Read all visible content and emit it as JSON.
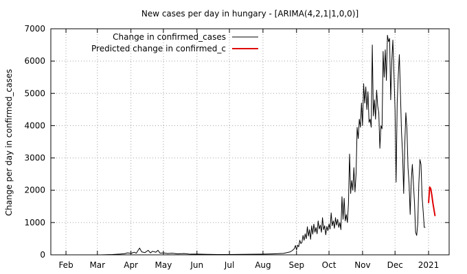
{
  "chart_data": {
    "type": "line",
    "title": "New cases per day in hungary -  [ARIMA(4,2,1|1,0,0)]",
    "xlabel": "",
    "ylabel": "Change per day in confirmed_cases",
    "ylim": [
      0,
      7000
    ],
    "yticks": [
      0,
      1000,
      2000,
      3000,
      4000,
      5000,
      6000,
      7000
    ],
    "xlim": [
      "2020-01-18",
      "2021-01-20"
    ],
    "xticks": [
      {
        "label": "Feb",
        "date": "2020-02-01"
      },
      {
        "label": "Mar",
        "date": "2020-03-01"
      },
      {
        "label": "Apr",
        "date": "2020-04-01"
      },
      {
        "label": "May",
        "date": "2020-05-01"
      },
      {
        "label": "Jun",
        "date": "2020-06-01"
      },
      {
        "label": "Jul",
        "date": "2020-07-01"
      },
      {
        "label": "Aug",
        "date": "2020-08-01"
      },
      {
        "label": "Sep",
        "date": "2020-09-01"
      },
      {
        "label": "Oct",
        "date": "2020-10-01"
      },
      {
        "label": "Nov",
        "date": "2020-11-01"
      },
      {
        "label": "Dec",
        "date": "2020-12-01"
      },
      {
        "label": "2021",
        "date": "2021-01-01"
      }
    ],
    "grid": true,
    "legend": "top-left",
    "series": [
      {
        "name": "Change in confirmed_cases",
        "color": "#000000",
        "points": [
          [
            "2020-03-04",
            0
          ],
          [
            "2020-03-15",
            10
          ],
          [
            "2020-03-22",
            25
          ],
          [
            "2020-03-26",
            35
          ],
          [
            "2020-03-29",
            60
          ],
          [
            "2020-04-01",
            45
          ],
          [
            "2020-04-04",
            80
          ],
          [
            "2020-04-06",
            50
          ],
          [
            "2020-04-09",
            210
          ],
          [
            "2020-04-11",
            90
          ],
          [
            "2020-04-14",
            70
          ],
          [
            "2020-04-17",
            140
          ],
          [
            "2020-04-19",
            60
          ],
          [
            "2020-04-21",
            110
          ],
          [
            "2020-04-24",
            80
          ],
          [
            "2020-04-26",
            140
          ],
          [
            "2020-04-28",
            50
          ],
          [
            "2020-05-01",
            60
          ],
          [
            "2020-05-05",
            40
          ],
          [
            "2020-05-09",
            50
          ],
          [
            "2020-05-14",
            30
          ],
          [
            "2020-05-20",
            40
          ],
          [
            "2020-05-26",
            20
          ],
          [
            "2020-06-01",
            25
          ],
          [
            "2020-06-10",
            15
          ],
          [
            "2020-06-20",
            10
          ],
          [
            "2020-07-01",
            10
          ],
          [
            "2020-07-15",
            15
          ],
          [
            "2020-07-30",
            20
          ],
          [
            "2020-08-10",
            30
          ],
          [
            "2020-08-20",
            45
          ],
          [
            "2020-08-26",
            90
          ],
          [
            "2020-08-28",
            130
          ],
          [
            "2020-08-30",
            190
          ],
          [
            "2020-08-31",
            290
          ],
          [
            "2020-09-01",
            150
          ],
          [
            "2020-09-02",
            300
          ],
          [
            "2020-09-03",
            250
          ],
          [
            "2020-09-04",
            450
          ],
          [
            "2020-09-05",
            350
          ],
          [
            "2020-09-06",
            380
          ],
          [
            "2020-09-07",
            600
          ],
          [
            "2020-09-08",
            450
          ],
          [
            "2020-09-09",
            650
          ],
          [
            "2020-09-10",
            500
          ],
          [
            "2020-09-11",
            870
          ],
          [
            "2020-09-12",
            580
          ],
          [
            "2020-09-13",
            780
          ],
          [
            "2020-09-14",
            480
          ],
          [
            "2020-09-15",
            900
          ],
          [
            "2020-09-16",
            640
          ],
          [
            "2020-09-17",
            950
          ],
          [
            "2020-09-18",
            700
          ],
          [
            "2020-09-19",
            850
          ],
          [
            "2020-09-20",
            650
          ],
          [
            "2020-09-21",
            1050
          ],
          [
            "2020-09-22",
            800
          ],
          [
            "2020-09-23",
            920
          ],
          [
            "2020-09-24",
            700
          ],
          [
            "2020-09-25",
            1150
          ],
          [
            "2020-09-26",
            780
          ],
          [
            "2020-09-27",
            900
          ],
          [
            "2020-09-28",
            620
          ],
          [
            "2020-09-29",
            880
          ],
          [
            "2020-09-30",
            750
          ],
          [
            "2020-10-01",
            950
          ],
          [
            "2020-10-02",
            800
          ],
          [
            "2020-10-03",
            1300
          ],
          [
            "2020-10-04",
            900
          ],
          [
            "2020-10-05",
            1050
          ],
          [
            "2020-10-06",
            820
          ],
          [
            "2020-10-07",
            1150
          ],
          [
            "2020-10-08",
            920
          ],
          [
            "2020-10-09",
            1100
          ],
          [
            "2020-10-10",
            850
          ],
          [
            "2020-10-11",
            1000
          ],
          [
            "2020-10-12",
            780
          ],
          [
            "2020-10-13",
            1800
          ],
          [
            "2020-10-14",
            1100
          ],
          [
            "2020-10-15",
            1750
          ],
          [
            "2020-10-16",
            1050
          ],
          [
            "2020-10-17",
            1250
          ],
          [
            "2020-10-18",
            1000
          ],
          [
            "2020-10-19",
            1600
          ],
          [
            "2020-10-20",
            3120
          ],
          [
            "2020-10-21",
            1900
          ],
          [
            "2020-10-22",
            2300
          ],
          [
            "2020-10-23",
            2000
          ],
          [
            "2020-10-24",
            2700
          ],
          [
            "2020-10-25",
            1950
          ],
          [
            "2020-10-26",
            2500
          ],
          [
            "2020-10-27",
            3950
          ],
          [
            "2020-10-28",
            3600
          ],
          [
            "2020-10-29",
            4200
          ],
          [
            "2020-10-30",
            3950
          ],
          [
            "2020-10-31",
            4700
          ],
          [
            "2020-11-01",
            4000
          ],
          [
            "2020-11-02",
            5300
          ],
          [
            "2020-11-03",
            4700
          ],
          [
            "2020-11-04",
            5200
          ],
          [
            "2020-11-05",
            4500
          ],
          [
            "2020-11-06",
            5050
          ],
          [
            "2020-11-07",
            4100
          ],
          [
            "2020-11-08",
            4200
          ],
          [
            "2020-11-09",
            3950
          ],
          [
            "2020-11-10",
            6500
          ],
          [
            "2020-11-11",
            4300
          ],
          [
            "2020-11-12",
            4800
          ],
          [
            "2020-11-13",
            4200
          ],
          [
            "2020-11-14",
            5100
          ],
          [
            "2020-11-15",
            4600
          ],
          [
            "2020-11-16",
            4400
          ],
          [
            "2020-11-17",
            3300
          ],
          [
            "2020-11-18",
            4000
          ],
          [
            "2020-11-19",
            3900
          ],
          [
            "2020-11-20",
            6300
          ],
          [
            "2020-11-21",
            5500
          ],
          [
            "2020-11-22",
            6350
          ],
          [
            "2020-11-23",
            5400
          ],
          [
            "2020-11-24",
            6800
          ],
          [
            "2020-11-25",
            6600
          ],
          [
            "2020-11-26",
            6700
          ],
          [
            "2020-11-27",
            4800
          ],
          [
            "2020-11-28",
            6000
          ],
          [
            "2020-11-29",
            6650
          ],
          [
            "2020-11-30",
            5600
          ],
          [
            "2020-12-01",
            4500
          ],
          [
            "2020-12-02",
            2250
          ],
          [
            "2020-12-03",
            4700
          ],
          [
            "2020-12-04",
            5550
          ],
          [
            "2020-12-05",
            6200
          ],
          [
            "2020-12-06",
            5000
          ],
          [
            "2020-12-07",
            3800
          ],
          [
            "2020-12-08",
            3100
          ],
          [
            "2020-12-09",
            1900
          ],
          [
            "2020-12-10",
            3400
          ],
          [
            "2020-12-11",
            4400
          ],
          [
            "2020-12-12",
            3900
          ],
          [
            "2020-12-13",
            2700
          ],
          [
            "2020-12-14",
            2200
          ],
          [
            "2020-12-15",
            1250
          ],
          [
            "2020-12-16",
            2300
          ],
          [
            "2020-12-17",
            2800
          ],
          [
            "2020-12-18",
            2200
          ],
          [
            "2020-12-19",
            1600
          ],
          [
            "2020-12-20",
            700
          ],
          [
            "2020-12-21",
            600
          ],
          [
            "2020-12-22",
            950
          ],
          [
            "2020-12-23",
            2200
          ],
          [
            "2020-12-24",
            2950
          ],
          [
            "2020-12-25",
            2800
          ],
          [
            "2020-12-26",
            1800
          ],
          [
            "2020-12-27",
            1350
          ],
          [
            "2020-12-28",
            850
          ],
          [
            "2020-12-29",
            850
          ]
        ]
      },
      {
        "name": "Predicted change in confirmed_c",
        "color": "#e00000",
        "points": [
          [
            "2021-01-01",
            1600
          ],
          [
            "2021-01-02",
            2100
          ],
          [
            "2021-01-03",
            2050
          ],
          [
            "2021-01-04",
            1850
          ],
          [
            "2021-01-05",
            1600
          ],
          [
            "2021-01-06",
            1400
          ],
          [
            "2021-01-07",
            1200
          ]
        ]
      }
    ]
  }
}
